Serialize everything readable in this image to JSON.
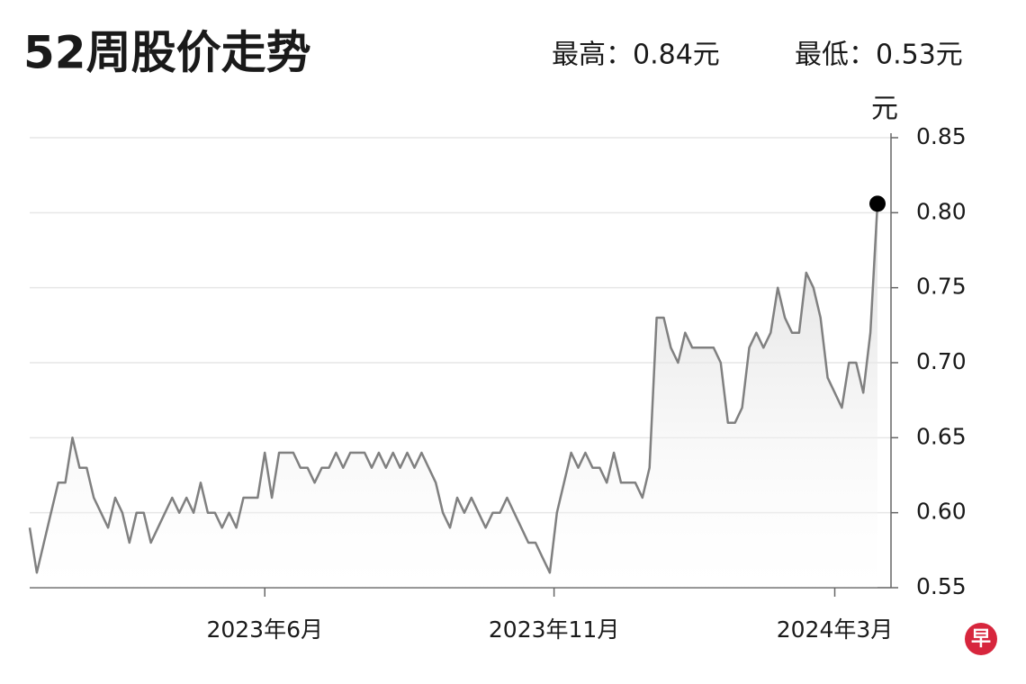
{
  "chart_data": {
    "type": "line",
    "title": "52周股价走势",
    "subtitle_high": "最高：0.84元",
    "subtitle_low": "最低：0.53元",
    "y_label": "元",
    "logo": "早",
    "color": "#808080",
    "marker_color": "#000000",
    "grid": true,
    "xlim": [
      0,
      119
    ],
    "xticks": [
      {
        "value": 33,
        "label": "2023年6月"
      },
      {
        "value": 73.6,
        "label": "2023年11月"
      },
      {
        "value": 113,
        "label": "2024年3月"
      }
    ],
    "ylim": [
      0.55,
      0.85
    ],
    "yticks": [
      0.55,
      {
        "value": 0.6,
        "label": "0.60"
      },
      0.65,
      {
        "value": 0.7,
        "label": "0.70"
      },
      0.75,
      {
        "value": 0.8,
        "label": "0.80"
      },
      0.85
    ],
    "values": [
      0.59,
      0.56,
      0.58,
      0.6,
      0.62,
      0.62,
      0.65,
      0.63,
      0.63,
      0.61,
      0.6,
      0.59,
      0.61,
      0.6,
      0.58,
      0.6,
      0.6,
      0.58,
      0.59,
      0.6,
      0.61,
      0.6,
      0.61,
      0.6,
      0.62,
      0.6,
      0.6,
      0.59,
      0.6,
      0.59,
      0.61,
      0.61,
      0.61,
      0.64,
      0.61,
      0.64,
      0.64,
      0.64,
      0.63,
      0.63,
      0.62,
      0.63,
      0.63,
      0.64,
      0.63,
      0.64,
      0.64,
      0.64,
      0.63,
      0.64,
      0.63,
      0.64,
      0.63,
      0.64,
      0.63,
      0.64,
      0.63,
      0.62,
      0.6,
      0.59,
      0.61,
      0.6,
      0.61,
      0.6,
      0.59,
      0.6,
      0.6,
      0.61,
      0.6,
      0.59,
      0.58,
      0.58,
      0.57,
      0.56,
      0.6,
      0.62,
      0.64,
      0.63,
      0.64,
      0.63,
      0.63,
      0.62,
      0.64,
      0.62,
      0.62,
      0.62,
      0.61,
      0.63,
      0.73,
      0.73,
      0.71,
      0.7,
      0.72,
      0.71,
      0.71,
      0.71,
      0.71,
      0.7,
      0.66,
      0.66,
      0.67,
      0.71,
      0.72,
      0.71,
      0.72,
      0.75,
      0.73,
      0.72,
      0.72,
      0.76,
      0.75,
      0.73,
      0.69,
      0.68,
      0.67,
      0.7,
      0.7,
      0.68,
      0.72,
      0.806
    ]
  }
}
